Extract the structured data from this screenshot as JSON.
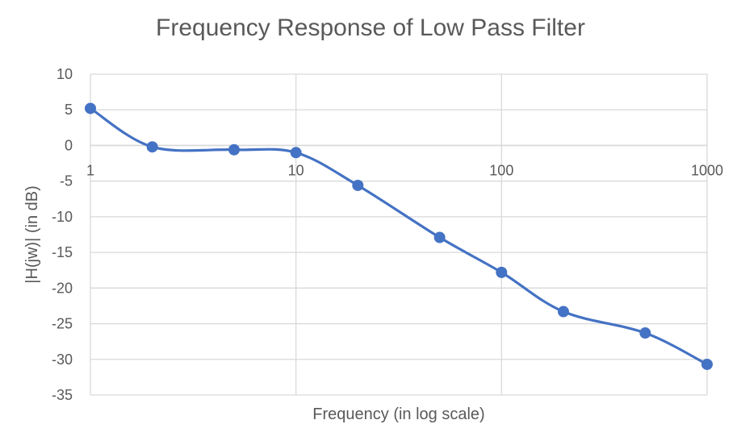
{
  "chart_data": {
    "type": "scatter",
    "title": "Frequency Response of Low Pass Filter",
    "xlabel": "Frequency  (in log scale)",
    "ylabel": "|H(jw)| (in dB)",
    "x_scale": "log",
    "xlim": [
      1,
      1000
    ],
    "ylim": [
      -35,
      10
    ],
    "x_ticks": [
      "1",
      "10",
      "100",
      "1000"
    ],
    "y_ticks": [
      "10",
      "5",
      "0",
      "-5",
      "-10",
      "-15",
      "-20",
      "-25",
      "-30",
      "-35"
    ],
    "grid": true,
    "smoothed_line": true,
    "series": [
      {
        "color": "#4472C4",
        "x": [
          1,
          2,
          5,
          10,
          20,
          50,
          100,
          200,
          500,
          1000
        ],
        "y": [
          5.2,
          -0.2,
          -0.6,
          -1.0,
          -5.6,
          -12.9,
          -17.8,
          -23.3,
          -26.3,
          -30.7
        ]
      }
    ]
  }
}
